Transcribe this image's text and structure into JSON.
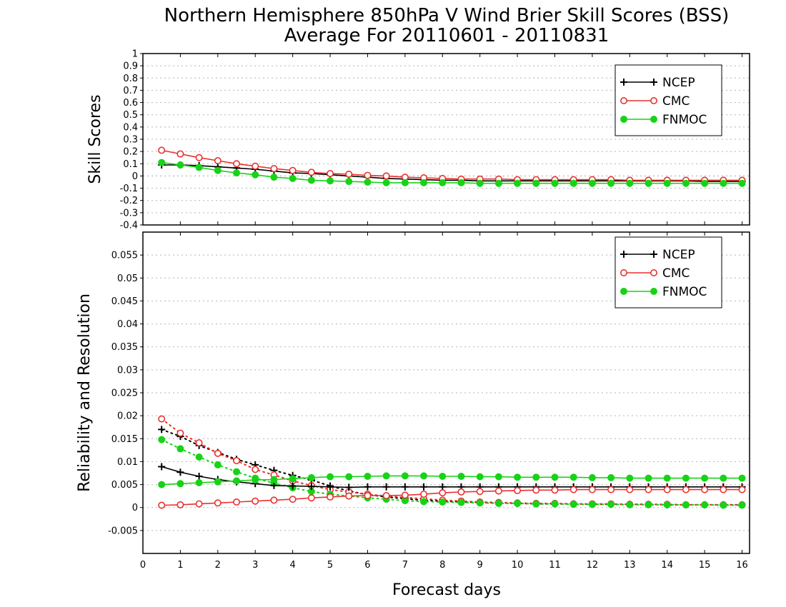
{
  "title_line1": "Northern Hemisphere 850hPa V Wind Brier Skill Scores (BSS)",
  "title_line2": "Average For 20110601 - 20110831",
  "x_axis_label": "Forecast days",
  "colors": {
    "NCEP": "#000000",
    "CMC": "#e8312f",
    "FNMOC": "#17d317",
    "grid": "#b4b4b4",
    "frame": "#000000"
  },
  "chart_data": [
    {
      "type": "line",
      "ylabel": "Skill Scores",
      "xlabel": "",
      "xlim": [
        0,
        16.2
      ],
      "ylim": [
        -0.4,
        1
      ],
      "grid": true,
      "legend_position": "top-right",
      "x_ticks": [
        "0",
        "1",
        "2",
        "3",
        "4",
        "5",
        "6",
        "7",
        "8",
        "9",
        "10",
        "11",
        "12",
        "13",
        "14",
        "15",
        "16"
      ],
      "y_ticks": [
        "-0.4",
        "-0.3",
        "-0.2",
        "-0.1",
        "0",
        "0.1",
        "0.2",
        "0.3",
        "0.4",
        "0.5",
        "0.6",
        "0.7",
        "0.8",
        "0.9",
        "1"
      ],
      "x": [
        0.5,
        1,
        1.5,
        2,
        2.5,
        3,
        3.5,
        4,
        4.5,
        5,
        5.5,
        6,
        6.5,
        7,
        7.5,
        8,
        8.5,
        9,
        9.5,
        10,
        10.5,
        11,
        11.5,
        12,
        12.5,
        13,
        13.5,
        14,
        14.5,
        15,
        15.5,
        16
      ],
      "series": [
        {
          "name": "NCEP",
          "marker": "plus",
          "line": "solid",
          "values": [
            0.09,
            0.09,
            0.085,
            0.075,
            0.065,
            0.055,
            0.04,
            0.025,
            0.02,
            0.01,
            0.0,
            -0.01,
            -0.02,
            -0.025,
            -0.03,
            -0.035,
            -0.035,
            -0.04,
            -0.04,
            -0.04,
            -0.04,
            -0.04,
            -0.04,
            -0.04,
            -0.04,
            -0.04,
            -0.04,
            -0.04,
            -0.04,
            -0.045,
            -0.045,
            -0.045
          ]
        },
        {
          "name": "CMC",
          "marker": "open-circle",
          "line": "solid",
          "values": [
            0.21,
            0.18,
            0.15,
            0.125,
            0.1,
            0.08,
            0.06,
            0.045,
            0.03,
            0.02,
            0.015,
            0.005,
            0.0,
            -0.01,
            -0.015,
            -0.02,
            -0.025,
            -0.025,
            -0.025,
            -0.03,
            -0.03,
            -0.03,
            -0.03,
            -0.03,
            -0.03,
            -0.035,
            -0.035,
            -0.035,
            -0.035,
            -0.035,
            -0.035,
            -0.035
          ]
        },
        {
          "name": "FNMOC",
          "marker": "filled-circle",
          "line": "solid",
          "values": [
            0.11,
            0.09,
            0.07,
            0.045,
            0.025,
            0.01,
            -0.01,
            -0.02,
            -0.035,
            -0.04,
            -0.045,
            -0.05,
            -0.055,
            -0.055,
            -0.055,
            -0.055,
            -0.055,
            -0.06,
            -0.06,
            -0.06,
            -0.06,
            -0.06,
            -0.06,
            -0.06,
            -0.06,
            -0.06,
            -0.06,
            -0.06,
            -0.06,
            -0.06,
            -0.06,
            -0.06
          ]
        }
      ]
    },
    {
      "type": "line",
      "ylabel": "Reliability and Resolution",
      "xlabel": "Forecast days",
      "xlim": [
        0,
        16.2
      ],
      "ylim": [
        -0.01,
        0.06
      ],
      "grid": true,
      "legend_position": "top-right",
      "x_ticks": [
        "0",
        "1",
        "2",
        "3",
        "4",
        "5",
        "6",
        "7",
        "8",
        "9",
        "10",
        "11",
        "12",
        "13",
        "14",
        "15",
        "16"
      ],
      "y_ticks": [
        "-0.005",
        "0",
        "0.005",
        "0.01",
        "0.015",
        "0.02",
        "0.025",
        "0.03",
        "0.035",
        "0.04",
        "0.045",
        "0.05",
        "0.055"
      ],
      "x": [
        0.5,
        1,
        1.5,
        2,
        2.5,
        3,
        3.5,
        4,
        4.5,
        5,
        5.5,
        6,
        6.5,
        7,
        7.5,
        8,
        8.5,
        9,
        9.5,
        10,
        10.5,
        11,
        11.5,
        12,
        12.5,
        13,
        13.5,
        14,
        14.5,
        15,
        15.5,
        16
      ],
      "series": [
        {
          "name": "NCEP",
          "legend": "NCEP",
          "metric": "Reliability",
          "marker": "plus",
          "line": "solid",
          "values": [
            0.0089,
            0.0077,
            0.0068,
            0.0061,
            0.0056,
            0.0052,
            0.0048,
            0.0047,
            0.0046,
            0.0045,
            0.0044,
            0.0045,
            0.0045,
            0.0045,
            0.0045,
            0.0045,
            0.0045,
            0.0045,
            0.0045,
            0.0045,
            0.0045,
            0.0045,
            0.0045,
            0.0045,
            0.0045,
            0.0045,
            0.0045,
            0.0045,
            0.0045,
            0.0045,
            0.0045,
            0.0045
          ]
        },
        {
          "name": "NCEP",
          "metric": "Resolution",
          "marker": "plus",
          "line": "dotted",
          "values": [
            0.017,
            0.0155,
            0.0135,
            0.012,
            0.0105,
            0.0093,
            0.0081,
            0.007,
            0.006,
            0.0047,
            0.0036,
            0.0028,
            0.0023,
            0.0019,
            0.0016,
            0.0014,
            0.0012,
            0.0011,
            0.001,
            0.0009,
            0.0008,
            0.0008,
            0.0008,
            0.0007,
            0.0007,
            0.0007,
            0.0007,
            0.0006,
            0.0006,
            0.0006,
            0.0006,
            0.0006
          ]
        },
        {
          "name": "CMC",
          "legend": "CMC",
          "metric": "Reliability",
          "marker": "open-circle",
          "line": "solid",
          "values": [
            0.0005,
            0.0006,
            0.0008,
            0.001,
            0.0012,
            0.0014,
            0.0016,
            0.0018,
            0.0021,
            0.0023,
            0.0025,
            0.0026,
            0.0026,
            0.0027,
            0.0029,
            0.0032,
            0.0034,
            0.0035,
            0.0036,
            0.0037,
            0.0038,
            0.0038,
            0.0039,
            0.0039,
            0.0039,
            0.0039,
            0.0039,
            0.0039,
            0.0039,
            0.0039,
            0.0039,
            0.0039
          ]
        },
        {
          "name": "CMC",
          "metric": "Resolution",
          "marker": "open-circle",
          "line": "dotted",
          "values": [
            0.0193,
            0.0162,
            0.0141,
            0.0118,
            0.0102,
            0.0083,
            0.0071,
            0.0058,
            0.0048,
            0.0039,
            0.0034,
            0.0029,
            0.0025,
            0.0022,
            0.0019,
            0.0016,
            0.0014,
            0.0012,
            0.0011,
            0.001,
            0.0009,
            0.0009,
            0.0008,
            0.0008,
            0.0008,
            0.0007,
            0.0007,
            0.0007,
            0.0006,
            0.0006,
            0.0006,
            0.0006
          ]
        },
        {
          "name": "FNMOC",
          "legend": "FNMOC",
          "metric": "Reliability",
          "marker": "filled-circle",
          "line": "solid",
          "values": [
            0.005,
            0.0052,
            0.0054,
            0.0056,
            0.0058,
            0.006,
            0.0061,
            0.0063,
            0.0065,
            0.0067,
            0.0067,
            0.0068,
            0.0069,
            0.0069,
            0.0069,
            0.0068,
            0.0068,
            0.0067,
            0.0067,
            0.0066,
            0.0066,
            0.0066,
            0.0066,
            0.0065,
            0.0065,
            0.0064,
            0.0064,
            0.0064,
            0.0064,
            0.0064,
            0.0064,
            0.0064
          ]
        },
        {
          "name": "FNMOC",
          "metric": "Resolution",
          "marker": "filled-circle",
          "line": "dotted",
          "values": [
            0.0148,
            0.0128,
            0.011,
            0.0093,
            0.0078,
            0.0064,
            0.0053,
            0.0043,
            0.0035,
            0.0029,
            0.0025,
            0.0021,
            0.0018,
            0.0015,
            0.0013,
            0.0012,
            0.0011,
            0.001,
            0.0009,
            0.0009,
            0.0008,
            0.0008,
            0.0007,
            0.0007,
            0.0007,
            0.0006,
            0.0006,
            0.0006,
            0.0006,
            0.0006,
            0.0005,
            0.0005
          ]
        }
      ]
    }
  ]
}
